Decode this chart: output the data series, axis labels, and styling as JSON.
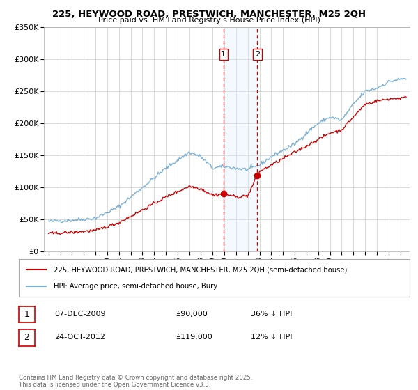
{
  "title_line1": "225, HEYWOOD ROAD, PRESTWICH, MANCHESTER, M25 2QH",
  "title_line2": "Price paid vs. HM Land Registry's House Price Index (HPI)",
  "legend_label_red": "225, HEYWOOD ROAD, PRESTWICH, MANCHESTER, M25 2QH (semi-detached house)",
  "legend_label_blue": "HPI: Average price, semi-detached house, Bury",
  "ylim": [
    0,
    350000
  ],
  "yticks": [
    0,
    50000,
    100000,
    150000,
    200000,
    250000,
    300000,
    350000
  ],
  "ytick_labels": [
    "£0",
    "£50K",
    "£100K",
    "£150K",
    "£200K",
    "£250K",
    "£300K",
    "£350K"
  ],
  "background_color": "#ffffff",
  "grid_color": "#cccccc",
  "red_color": "#cc0000",
  "blue_color": "#7ab0d4",
  "shade_color": "#ddeeff",
  "marker1_date": 2009.92,
  "marker1_value_red": 90000,
  "marker2_date": 2012.81,
  "marker2_value_red": 119000,
  "footnote": "Contains HM Land Registry data © Crown copyright and database right 2025.\nThis data is licensed under the Open Government Licence v3.0.",
  "table_row1": [
    "1",
    "07-DEC-2009",
    "£90,000",
    "36% ↓ HPI"
  ],
  "table_row2": [
    "2",
    "24-OCT-2012",
    "£119,000",
    "12% ↓ HPI"
  ],
  "hpi_anchors_x": [
    1995,
    1997,
    1999,
    2001,
    2003,
    2005,
    2007,
    2008,
    2009,
    2010,
    2011,
    2012,
    2013,
    2014,
    2015,
    2016,
    2017,
    2018,
    2019,
    2020,
    2021,
    2022,
    2023,
    2024,
    2025.3
  ],
  "hpi_anchors_y": [
    47000,
    49000,
    52000,
    70000,
    100000,
    130000,
    155000,
    148000,
    130000,
    133000,
    130000,
    128000,
    135000,
    148000,
    158000,
    168000,
    185000,
    200000,
    210000,
    205000,
    230000,
    250000,
    255000,
    265000,
    270000
  ],
  "red_anchors_x": [
    1995,
    1997,
    1999,
    2001,
    2003,
    2005,
    2007,
    2008,
    2009.0,
    2009.92,
    2010.5,
    2011,
    2012,
    2012.81,
    2013,
    2014,
    2015,
    2016,
    2017,
    2018,
    2019,
    2020,
    2021,
    2022,
    2023,
    2024,
    2025.3
  ],
  "red_anchors_y": [
    28000,
    30000,
    33000,
    45000,
    65000,
    85000,
    102000,
    98000,
    88000,
    90000,
    88000,
    85000,
    87000,
    119000,
    125000,
    135000,
    145000,
    155000,
    165000,
    175000,
    185000,
    190000,
    210000,
    230000,
    235000,
    238000,
    240000
  ]
}
